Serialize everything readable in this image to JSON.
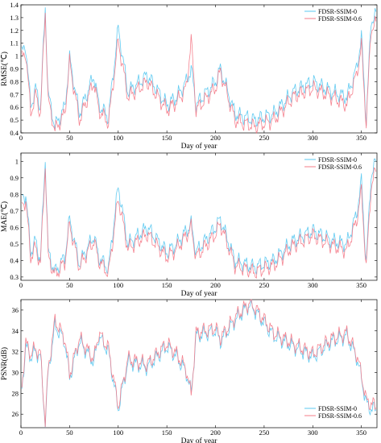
{
  "series_colors": {
    "FDSR-SSIM-0": "#5bc8f0",
    "FDSR-SSIM-0.6": "#f47c8a"
  },
  "chart_data": [
    {
      "type": "line",
      "xlabel": "Day of year",
      "ylabel": "RMSE(℃)",
      "xlim": [
        0,
        366
      ],
      "ylim": [
        0.4,
        1.4
      ],
      "xticks": [
        0,
        50,
        100,
        150,
        200,
        250,
        300,
        350
      ],
      "yticks": [
        0.4,
        0.5,
        0.6,
        0.7,
        0.8,
        0.9,
        1,
        1.1,
        1.2,
        1.3,
        1.4
      ],
      "legend_position": "top-right",
      "keypoints": {
        "day": [
          1,
          5,
          10,
          15,
          20,
          25,
          28,
          35,
          45,
          50,
          60,
          75,
          80,
          90,
          100,
          110,
          130,
          150,
          160,
          170,
          175,
          180,
          200,
          205,
          220,
          240,
          260,
          280,
          300,
          320,
          335,
          345,
          350,
          355,
          360,
          365
        ],
        "FDSR-SSIM-0": [
          1.02,
          1.08,
          0.6,
          0.75,
          0.6,
          1.38,
          0.7,
          0.45,
          0.6,
          0.98,
          0.55,
          0.85,
          0.62,
          0.52,
          1.22,
          0.72,
          0.85,
          0.62,
          0.68,
          0.8,
          0.9,
          0.62,
          0.8,
          0.9,
          0.55,
          0.5,
          0.55,
          0.72,
          0.8,
          0.72,
          0.68,
          0.9,
          1.15,
          0.5,
          1.28,
          1.32
        ],
        "FDSR-SSIM-0.6": [
          0.98,
          1.03,
          0.55,
          0.7,
          0.55,
          1.35,
          0.65,
          0.42,
          0.55,
          0.95,
          0.5,
          0.8,
          0.58,
          0.48,
          1.12,
          0.68,
          0.8,
          0.58,
          0.64,
          0.75,
          1.13,
          0.58,
          0.75,
          0.88,
          0.5,
          0.45,
          0.5,
          0.68,
          0.75,
          0.68,
          0.62,
          0.85,
          1.08,
          0.47,
          1.22,
          1.25
        ]
      },
      "series": [
        {
          "name": "FDSR-SSIM-0"
        },
        {
          "name": "FDSR-SSIM-0.6"
        }
      ]
    },
    {
      "type": "line",
      "xlabel": "Day of year",
      "ylabel": "MAE(℃)",
      "xlim": [
        0,
        366
      ],
      "ylim": [
        0.28,
        1.05
      ],
      "xticks": [
        0,
        50,
        100,
        150,
        200,
        250,
        300,
        350
      ],
      "yticks": [
        0.3,
        0.4,
        0.5,
        0.6,
        0.7,
        0.8,
        0.9,
        1
      ],
      "legend_position": "top-right",
      "keypoints": {
        "day": [
          1,
          5,
          10,
          15,
          20,
          25,
          28,
          35,
          45,
          50,
          60,
          75,
          80,
          90,
          100,
          110,
          130,
          150,
          160,
          170,
          175,
          180,
          200,
          205,
          220,
          240,
          260,
          280,
          300,
          320,
          335,
          345,
          350,
          355,
          360,
          365
        ],
        "FDSR-SSIM-0": [
          0.78,
          0.8,
          0.45,
          0.52,
          0.4,
          1.02,
          0.45,
          0.33,
          0.42,
          0.65,
          0.38,
          0.55,
          0.42,
          0.35,
          0.85,
          0.5,
          0.6,
          0.45,
          0.5,
          0.58,
          0.62,
          0.45,
          0.6,
          0.65,
          0.4,
          0.36,
          0.4,
          0.52,
          0.58,
          0.52,
          0.5,
          0.68,
          0.88,
          0.38,
          0.92,
          1.0
        ],
        "FDSR-SSIM-0.6": [
          0.74,
          0.76,
          0.42,
          0.48,
          0.38,
          0.98,
          0.42,
          0.31,
          0.39,
          0.62,
          0.36,
          0.52,
          0.4,
          0.32,
          0.78,
          0.47,
          0.56,
          0.42,
          0.47,
          0.55,
          0.6,
          0.42,
          0.56,
          0.62,
          0.37,
          0.33,
          0.37,
          0.49,
          0.55,
          0.49,
          0.46,
          0.64,
          0.82,
          0.35,
          0.85,
          0.95
        ]
      },
      "series": [
        {
          "name": "FDSR-SSIM-0"
        },
        {
          "name": "FDSR-SSIM-0.6"
        }
      ]
    },
    {
      "type": "line",
      "xlabel": "Day of year",
      "ylabel": "PSNR(dB)",
      "xlim": [
        0,
        366
      ],
      "ylim": [
        24.7,
        37
      ],
      "xticks": [
        0,
        50,
        100,
        150,
        200,
        250,
        300,
        350
      ],
      "yticks": [
        26,
        28,
        30,
        32,
        34,
        36
      ],
      "legend_position": "bottom-right",
      "keypoints": {
        "day": [
          1,
          5,
          10,
          15,
          20,
          25,
          28,
          35,
          45,
          50,
          60,
          75,
          80,
          90,
          100,
          110,
          130,
          150,
          160,
          170,
          175,
          180,
          200,
          205,
          220,
          235,
          240,
          260,
          280,
          300,
          320,
          335,
          345,
          350,
          355,
          360,
          365
        ],
        "FDSR-SSIM-0": [
          28.5,
          32.5,
          31.5,
          32.0,
          31.5,
          25.0,
          30.0,
          34.5,
          33.0,
          29.5,
          33.0,
          31.0,
          33.5,
          32.0,
          26.5,
          31.0,
          30.5,
          32.5,
          31.5,
          30.0,
          28.0,
          33.5,
          34.0,
          33.0,
          35.0,
          36.5,
          36.0,
          33.5,
          32.5,
          31.5,
          33.0,
          33.5,
          31.5,
          29.5,
          27.0,
          26.5,
          26.5
        ],
        "FDSR-SSIM-0.6": [
          28.8,
          32.8,
          31.8,
          32.3,
          31.8,
          25.2,
          30.3,
          35.0,
          33.3,
          29.8,
          33.3,
          31.3,
          33.8,
          32.3,
          26.8,
          31.3,
          30.8,
          32.8,
          31.8,
          30.3,
          27.8,
          33.8,
          34.3,
          33.3,
          35.3,
          36.7,
          36.3,
          33.8,
          32.8,
          31.8,
          33.3,
          33.8,
          31.8,
          29.8,
          27.3,
          27.0,
          26.8
        ]
      },
      "series": [
        {
          "name": "FDSR-SSIM-0"
        },
        {
          "name": "FDSR-SSIM-0.6"
        }
      ]
    }
  ]
}
